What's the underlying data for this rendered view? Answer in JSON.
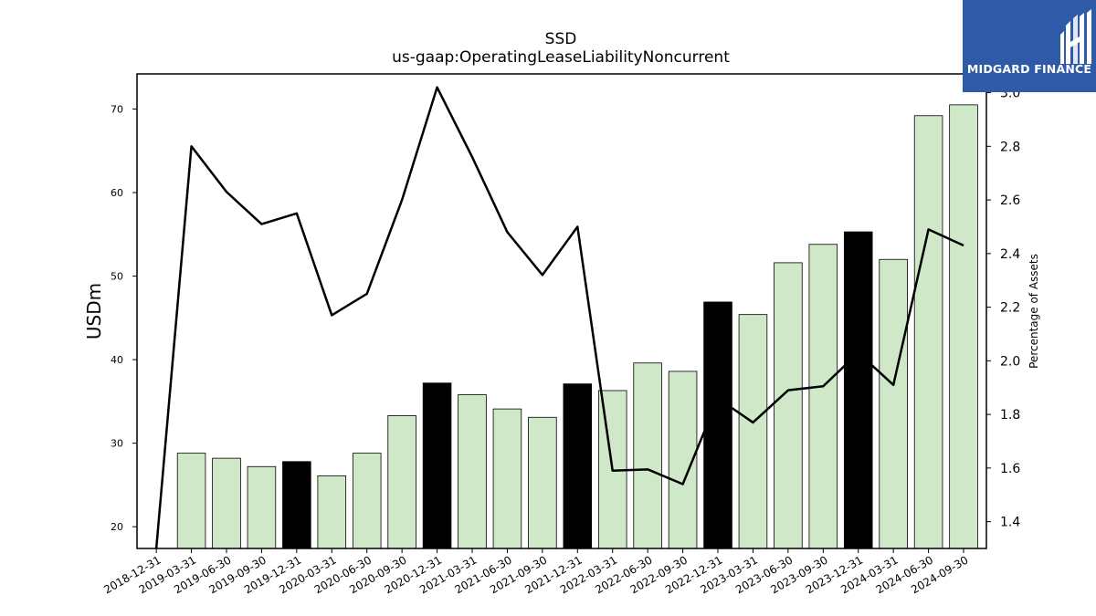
{
  "chart_data": {
    "type": "bar",
    "title": "SSD",
    "subtitle": "us-gaap:OperatingLeaseLiabilityNoncurrent",
    "ylabel": "USDm",
    "y2label": "Percentage of Assets",
    "ylim": [
      17.4,
      74.2
    ],
    "y2lim": [
      1.3,
      3.07
    ],
    "yticks": [
      20,
      30,
      40,
      50,
      60,
      70
    ],
    "y2ticks": [
      1.4,
      1.6,
      1.8,
      2.0,
      2.2,
      2.4,
      2.6,
      2.8,
      3.0
    ],
    "y2tick_labels": [
      "1.4",
      "1.6",
      "1.8",
      "2.0",
      "2.2",
      "2.4",
      "2.6",
      "2.8",
      "3.0"
    ],
    "categories": [
      "2018-12-31",
      "2019-03-31",
      "2019-06-30",
      "2019-09-30",
      "2019-12-31",
      "2020-03-31",
      "2020-06-30",
      "2020-09-30",
      "2020-12-31",
      "2021-03-31",
      "2021-06-30",
      "2021-09-30",
      "2021-12-31",
      "2022-03-31",
      "2022-06-30",
      "2022-09-30",
      "2022-12-31",
      "2023-03-31",
      "2023-06-30",
      "2023-09-30",
      "2023-12-31",
      "2024-03-31",
      "2024-06-30",
      "2024-09-30"
    ],
    "series": [
      {
        "type": "bar",
        "values": [
          null,
          28.8,
          28.2,
          27.2,
          27.8,
          26.1,
          28.8,
          33.3,
          37.2,
          35.8,
          34.1,
          33.1,
          37.1,
          36.3,
          39.6,
          38.6,
          46.9,
          45.4,
          51.6,
          53.8,
          55.3,
          52.0,
          69.2,
          70.5
        ],
        "highlight": [
          false,
          false,
          false,
          false,
          true,
          false,
          false,
          false,
          true,
          false,
          false,
          false,
          true,
          false,
          false,
          false,
          true,
          false,
          false,
          false,
          true,
          false,
          false,
          false
        ]
      },
      {
        "type": "line",
        "axis": "right",
        "values": [
          0.3,
          2.8,
          2.63,
          2.51,
          2.55,
          2.17,
          2.25,
          2.6,
          3.02,
          2.76,
          2.48,
          2.32,
          2.5,
          1.59,
          1.595,
          1.54,
          1.86,
          1.77,
          1.89,
          1.905,
          2.03,
          1.91,
          2.49,
          2.43
        ]
      }
    ],
    "colors": {
      "bar": "#cfe9c8",
      "bar_highlight": "#000000",
      "line": "#000000",
      "axis": "#000000"
    },
    "grid": false,
    "legend": "none"
  },
  "logo": {
    "text": "MIDGARD FINANCE",
    "background": "#2f5aa8"
  }
}
